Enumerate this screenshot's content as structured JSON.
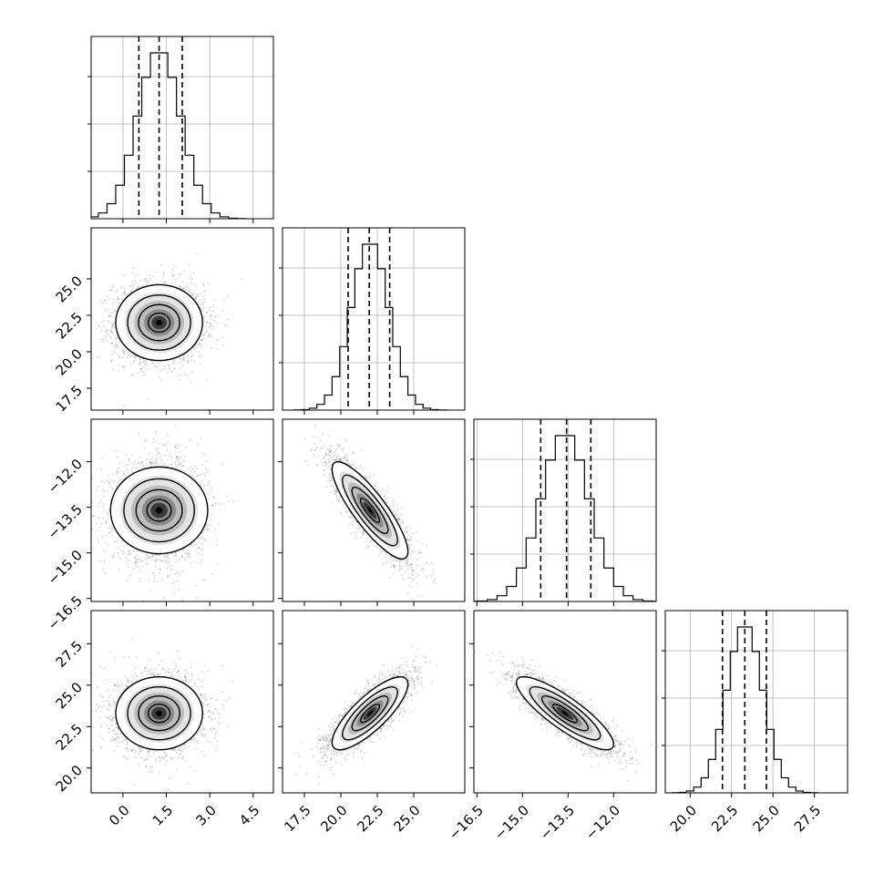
{
  "chart_data": {
    "type": "corner",
    "parameters": [
      {
        "mean": 1.25,
        "sd": 0.75,
        "q": [
          0.55,
          1.25,
          2.05
        ],
        "range": [
          -1.1,
          5.2
        ],
        "ticks": [
          0.0,
          1.5,
          3.0,
          4.5
        ],
        "tick_labels": [
          "0.0",
          "1.5",
          "3.0",
          "4.5"
        ]
      },
      {
        "mean": 22.0,
        "sd": 1.3,
        "q": [
          20.5,
          21.95,
          23.35
        ],
        "range": [
          16.0,
          28.5
        ],
        "ticks": [
          17.5,
          20.0,
          22.5,
          25.0
        ],
        "tick_labels": [
          "17.5",
          "20.0",
          "22.5",
          "25.0"
        ]
      },
      {
        "mean": -13.6,
        "sd": 0.8,
        "q": [
          -14.4,
          -13.55,
          -12.75
        ],
        "range": [
          -16.6,
          -10.6
        ],
        "ticks": [
          -16.5,
          -15.0,
          -13.5,
          -12.0
        ],
        "tick_labels": [
          "−16.5",
          "−15.0",
          "−13.5",
          "−12.0"
        ]
      },
      {
        "mean": 23.3,
        "sd": 1.1,
        "q": [
          21.95,
          23.3,
          24.6
        ],
        "range": [
          18.5,
          29.5
        ],
        "ticks": [
          20.0,
          22.5,
          25.0,
          27.5
        ],
        "tick_labels": [
          "20.0",
          "22.5",
          "25.0",
          "27.5"
        ]
      }
    ],
    "correlations": {
      "1,0": 0.0,
      "2,0": 0.0,
      "2,1": -0.85,
      "3,0": 0.0,
      "3,1": 0.8,
      "3,2": -0.85
    }
  }
}
